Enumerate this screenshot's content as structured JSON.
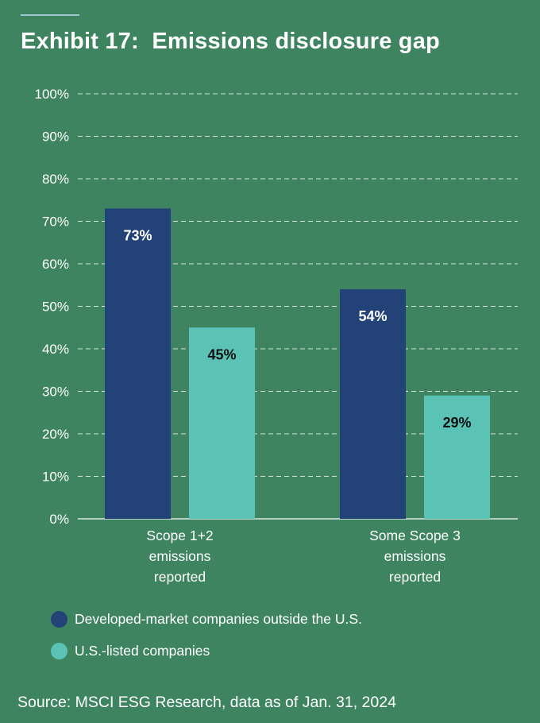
{
  "header": {
    "title": "Exhibit 17:  Emissions disclosure gap"
  },
  "colors": {
    "background": "#3e8460",
    "dark_series": "#234378",
    "light_series": "#5ac3b6",
    "grid": "#d7e6dc"
  },
  "chart_data": {
    "type": "bar",
    "title": "Exhibit 17:  Emissions disclosure gap",
    "categories": [
      [
        "Scope 1+2",
        "emissions",
        "reported"
      ],
      [
        "Some Scope 3",
        "emissions",
        "reported"
      ]
    ],
    "series": [
      {
        "name": "Developed-market companies outside the U.S.",
        "values": [
          73,
          54
        ],
        "labels": [
          "73%",
          "54%"
        ],
        "color": "#234378",
        "label_color": "#ffffff"
      },
      {
        "name": "U.S.-listed companies",
        "values": [
          45,
          29
        ],
        "labels": [
          "45%",
          "29%"
        ],
        "color": "#5ac3b6",
        "label_color": "#111111"
      }
    ],
    "ylim": [
      0,
      100
    ],
    "yticks": [
      "0%",
      "10%",
      "20%",
      "30%",
      "40%",
      "50%",
      "60%",
      "70%",
      "80%",
      "90%",
      "100%"
    ],
    "grid": true,
    "legend_position": "bottom-left"
  },
  "legend": {
    "items": [
      {
        "label": "Developed-market companies outside the U.S."
      },
      {
        "label": "U.S.-listed companies"
      }
    ]
  },
  "footer": {
    "source": "Source: MSCI ESG Research, data as of Jan. 31, 2024"
  }
}
